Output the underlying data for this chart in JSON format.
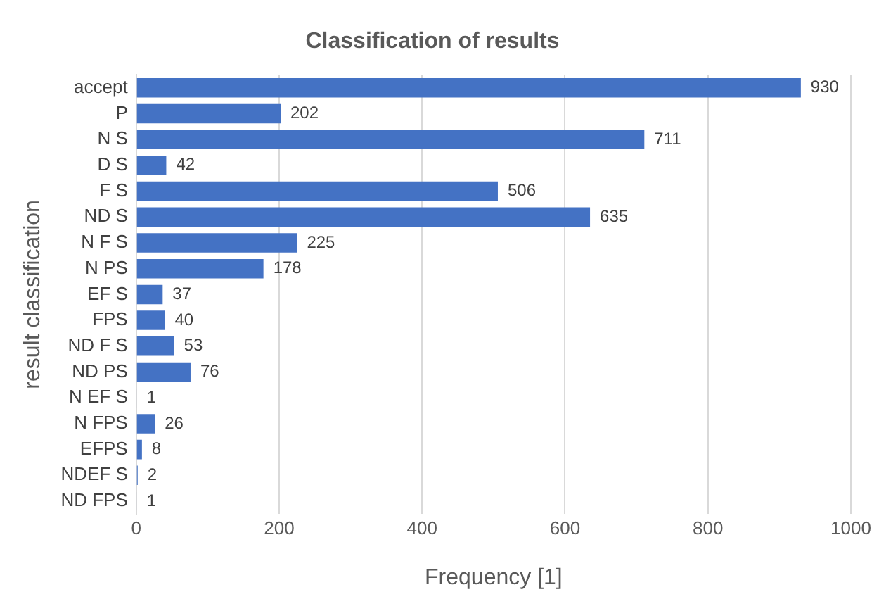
{
  "chart_data": {
    "type": "bar",
    "orientation": "horizontal",
    "title": "Classification of results",
    "xlabel": "Frequency [1]",
    "ylabel": "result classification",
    "categories": [
      "accept",
      "P",
      "N S",
      "D S",
      "F S",
      "ND S",
      "N F S",
      "N PS",
      "EF S",
      "FPS",
      "ND F S",
      "ND PS",
      "N EF S",
      "N FPS",
      "EFPS",
      "NDEF S",
      "ND FPS"
    ],
    "values": [
      930,
      202,
      711,
      42,
      506,
      635,
      225,
      178,
      37,
      40,
      53,
      76,
      1,
      26,
      8,
      2,
      1
    ],
    "color": "#4472c4",
    "xlim": [
      0,
      1000
    ],
    "xticks": [
      0,
      200,
      400,
      600,
      800,
      1000
    ],
    "grid": "x",
    "data_labels": true,
    "legend": false
  }
}
